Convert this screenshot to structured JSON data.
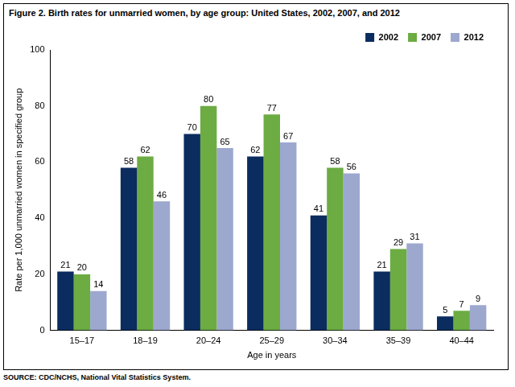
{
  "chart_data": {
    "type": "bar",
    "title": "Figure 2. Birth rates for unmarried women, by age group: United States, 2002, 2007, and 2012",
    "x_label": "Age in years",
    "y_label": "Rate per 1,000 unmarried women in specified group",
    "source": "SOURCE: CDC/NCHS, National Vital Statistics System.",
    "categories": [
      "15–17",
      "18–19",
      "20–24",
      "25–29",
      "30–34",
      "35–39",
      "40–44"
    ],
    "series": [
      {
        "name": "2002",
        "color": "#0b2c5f",
        "values": [
          21,
          58,
          70,
          62,
          41,
          21,
          5
        ]
      },
      {
        "name": "2007",
        "color": "#6cac43",
        "values": [
          20,
          62,
          80,
          77,
          58,
          29,
          7
        ]
      },
      {
        "name": "2012",
        "color": "#9da8cf",
        "values": [
          14,
          46,
          65,
          67,
          56,
          31,
          9
        ]
      }
    ],
    "ylim": [
      0,
      100
    ],
    "yticks": [
      0,
      20,
      40,
      60,
      80,
      100
    ],
    "grid": false,
    "legend": "top-right",
    "data_labels": true
  }
}
